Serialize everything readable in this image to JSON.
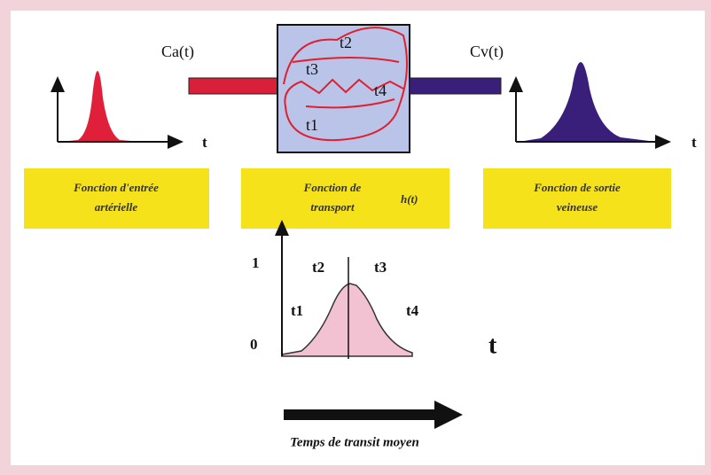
{
  "input": {
    "label": "Ca(t)",
    "axis_label": "t",
    "caption": [
      "Fonction d'entrée",
      "artérielle"
    ]
  },
  "box": {
    "labels": [
      "t2",
      "t3",
      "t4",
      "t1"
    ],
    "caption": [
      "Fonction de",
      "transport"
    ],
    "function_label": "h(t)"
  },
  "output": {
    "label": "Cv(t)",
    "axis_label": "t",
    "caption": [
      "Fonction de sortie",
      "veineuse"
    ]
  },
  "transit_plot": {
    "y_labels": [
      "1",
      "0"
    ],
    "labels": [
      "t2",
      "t3",
      "t1",
      "t4"
    ],
    "axis_label": "t"
  },
  "footer": "Temps de transit moyen"
}
